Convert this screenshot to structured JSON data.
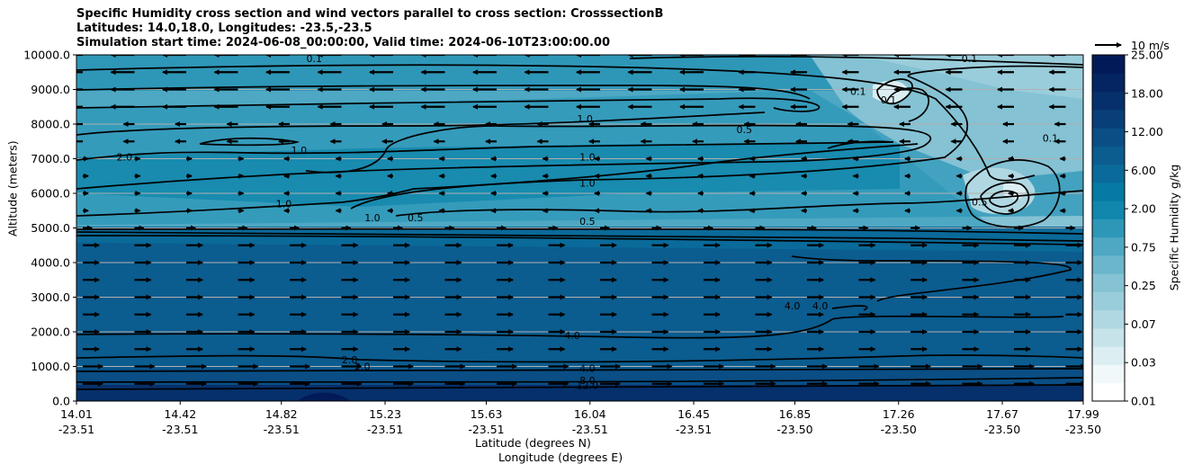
{
  "chart_data": {
    "type": "contour",
    "title": [
      "Specific Humidity cross section and wind vectors parallel to cross section: CrosssectionB",
      "Latitudes: 14.0,18.0, Longitudes: -23.5,-23.5",
      "Simulation start time: 2024-06-08_00:00:00, Valid time: 2024-06-10T23:00:00.00"
    ],
    "ylabel": "Altitude (meters)",
    "xlabel_lat": "Latitude (degrees N)",
    "xlabel_lon": "Longitude (degrees E)",
    "ylim": [
      0,
      10000
    ],
    "yticks": [
      "0.0",
      "1000.0",
      "2000.0",
      "3000.0",
      "4000.0",
      "5000.0",
      "6000.0",
      "7000.0",
      "8000.0",
      "9000.0",
      "10000.0"
    ],
    "xticks_lat": [
      "14.01",
      "14.42",
      "14.82",
      "15.23",
      "15.63",
      "16.04",
      "16.45",
      "16.85",
      "17.26",
      "17.67",
      "17.99"
    ],
    "xticks_lon": [
      "-23.51",
      "-23.51",
      "-23.51",
      "-23.51",
      "-23.51",
      "-23.51",
      "-23.51",
      "-23.50",
      "-23.50",
      "-23.50",
      "-23.50"
    ],
    "colorbar": {
      "label": "Specific Humidity g/kg",
      "ticks": [
        "0.01",
        "0.03",
        "0.07",
        "0.25",
        "0.75",
        "2.00",
        "6.00",
        "12.00",
        "18.00",
        "25.00"
      ],
      "colors": [
        "#ffffff",
        "#f0f8fa",
        "#dceef2",
        "#c6e3ea",
        "#b0d8e3",
        "#9acddb",
        "#84c2d4",
        "#6bb6cc",
        "#4ea8c3",
        "#2e97b8",
        "#1187ad",
        "#067aa3",
        "#0a6a99",
        "#0b5c8f",
        "#0a4e85",
        "#083f78",
        "#06306b",
        "#042562",
        "#021b58"
      ]
    },
    "quiver_key": "10 m/s",
    "contour_labels": [
      {
        "text": "0.1",
        "x": 14.95,
        "y": 9900
      },
      {
        "text": "0.1",
        "x": 17.54,
        "y": 9900
      },
      {
        "text": "0.1",
        "x": 17.1,
        "y": 8950
      },
      {
        "text": "0.1",
        "x": 17.22,
        "y": 8700
      },
      {
        "text": "0.1",
        "x": 17.86,
        "y": 7600
      },
      {
        "text": "1.0",
        "x": 16.02,
        "y": 8150
      },
      {
        "text": "0.5",
        "x": 16.65,
        "y": 7850
      },
      {
        "text": "2.0",
        "x": 14.2,
        "y": 7050
      },
      {
        "text": "1.0",
        "x": 14.89,
        "y": 7250
      },
      {
        "text": "1.0",
        "x": 16.03,
        "y": 7050
      },
      {
        "text": "1.0",
        "x": 16.03,
        "y": 6300
      },
      {
        "text": "1.0",
        "x": 14.83,
        "y": 5700
      },
      {
        "text": "1.0",
        "x": 15.18,
        "y": 5300
      },
      {
        "text": "0.5",
        "x": 15.35,
        "y": 5300
      },
      {
        "text": "0.5",
        "x": 17.58,
        "y": 5750
      },
      {
        "text": "0.5",
        "x": 16.03,
        "y": 5200
      },
      {
        "text": "4.0",
        "x": 16.84,
        "y": 2750
      },
      {
        "text": "4.0",
        "x": 16.95,
        "y": 2750
      },
      {
        "text": "4.0",
        "x": 15.97,
        "y": 1900
      },
      {
        "text": "2.0",
        "x": 15.09,
        "y": 1200
      },
      {
        "text": "2.0",
        "x": 15.14,
        "y": 1000
      },
      {
        "text": "4.0",
        "x": 16.03,
        "y": 950
      },
      {
        "text": "8.0",
        "x": 16.03,
        "y": 600
      },
      {
        "text": "12.0",
        "x": 16.03,
        "y": 450
      }
    ]
  }
}
